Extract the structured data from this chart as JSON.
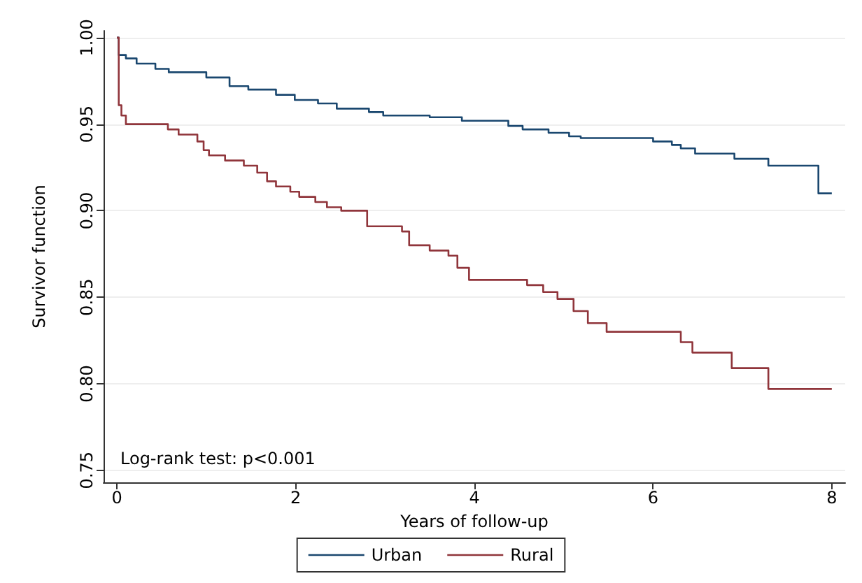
{
  "chart_data": {
    "type": "step",
    "xlabel": "Years of follow-up",
    "ylabel": "Survivor function",
    "annotations": [
      "Log-rank test: p<0.001"
    ],
    "xlim": [
      -0.15,
      8.15
    ],
    "xticks": [
      0,
      2,
      4,
      6,
      8
    ],
    "ylim": [
      0.743,
      1.004
    ],
    "yticks": [
      {
        "value": 0.75,
        "label": "0.75"
      },
      {
        "value": 0.8,
        "label": "0.80"
      },
      {
        "value": 0.85,
        "label": "0.85"
      },
      {
        "value": 0.9,
        "label": "0.90"
      },
      {
        "value": 0.95,
        "label": "0.95"
      },
      {
        "value": 1,
        "label": "1.00"
      }
    ],
    "grid": "y",
    "legend": "bottom",
    "marker": "none",
    "line_style": "solid",
    "series": [
      {
        "name": "Urban",
        "color": "#1a476f",
        "x": [
          0,
          0.02,
          0.1,
          0.22,
          0.43,
          0.58,
          1.0,
          1.26,
          1.47,
          1.78,
          1.99,
          2.25,
          2.46,
          2.82,
          2.98,
          3.5,
          3.86,
          4.38,
          4.54,
          4.83,
          5.06,
          5.19,
          6.0,
          6.21,
          6.31,
          6.47,
          6.91,
          7.29,
          7.85,
          8.0
        ],
        "values": [
          1,
          0.99,
          0.988,
          0.985,
          0.982,
          0.98,
          0.977,
          0.972,
          0.97,
          0.967,
          0.964,
          0.962,
          0.959,
          0.957,
          0.955,
          0.954,
          0.952,
          0.949,
          0.947,
          0.945,
          0.943,
          0.942,
          0.94,
          0.938,
          0.936,
          0.933,
          0.93,
          0.926,
          0.91,
          0.91
        ]
      },
      {
        "name": "Rural",
        "color": "#90353b",
        "x": [
          0,
          0.02,
          0.05,
          0.1,
          0.57,
          0.69,
          0.9,
          0.97,
          1.03,
          1.21,
          1.42,
          1.57,
          1.68,
          1.78,
          1.94,
          2.04,
          2.22,
          2.35,
          2.51,
          2.8,
          3.19,
          3.27,
          3.5,
          3.71,
          3.81,
          3.94,
          4.59,
          4.77,
          4.93,
          5.11,
          5.27,
          5.48,
          6.31,
          6.44,
          6.88,
          7.29,
          8.0
        ],
        "values": [
          1,
          0.961,
          0.955,
          0.95,
          0.947,
          0.944,
          0.94,
          0.935,
          0.932,
          0.929,
          0.926,
          0.922,
          0.917,
          0.914,
          0.911,
          0.908,
          0.905,
          0.902,
          0.9,
          0.891,
          0.888,
          0.88,
          0.877,
          0.874,
          0.867,
          0.86,
          0.857,
          0.853,
          0.849,
          0.842,
          0.835,
          0.83,
          0.824,
          0.818,
          0.809,
          0.797,
          0.797
        ]
      }
    ]
  }
}
